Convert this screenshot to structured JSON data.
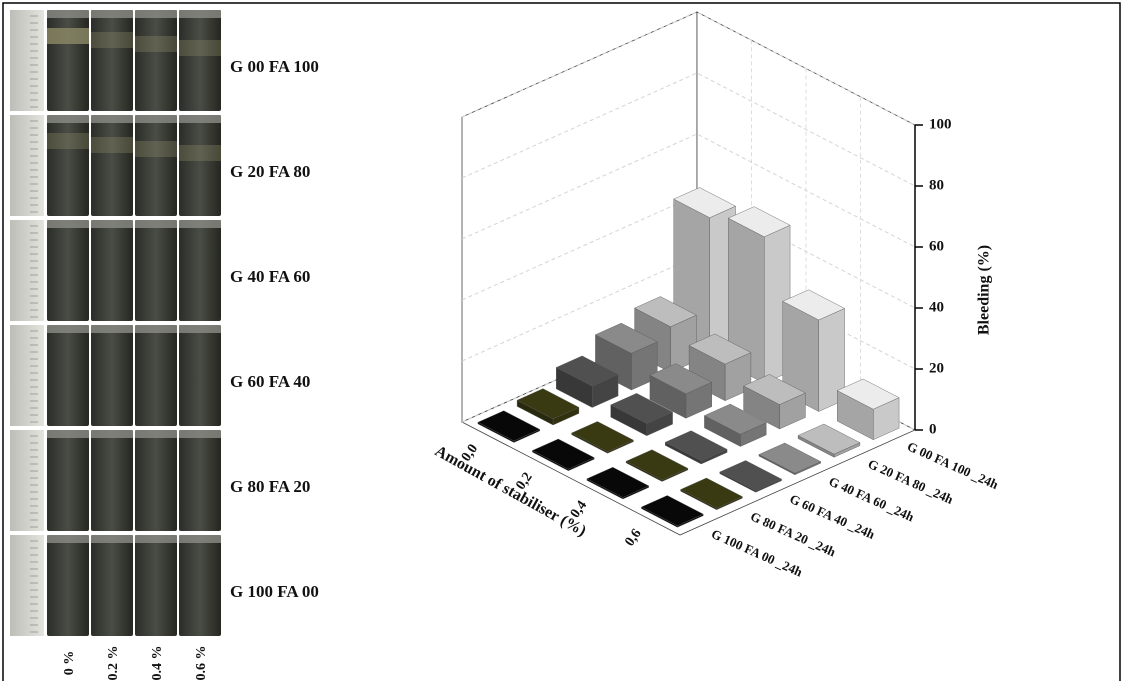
{
  "photo_panel": {
    "row_labels": [
      "G 00 FA 100",
      "G 20 FA 80",
      "G 40 FA 60",
      "G 60 FA 40",
      "G 80 FA 20",
      "G 100 FA 00"
    ],
    "column_labels": [
      "0 %",
      "0.2 %",
      "0.4 %",
      "0.6 %"
    ]
  },
  "chart_data": {
    "type": "bar3d",
    "categories": [
      "0,0",
      "0,2",
      "0,4",
      "0,6"
    ],
    "x_label": "Amount of stabiliser (%)",
    "z_label": "Bleeding (%)",
    "zlim": [
      0,
      100
    ],
    "zticks": [
      0,
      20,
      40,
      60,
      80,
      100
    ],
    "grid": true,
    "series": [
      {
        "name": "G 00 FA 100 _24h",
        "color": "#ececec",
        "values": [
          45,
          48,
          30,
          10
        ]
      },
      {
        "name": "G 20 FA 80 _24h",
        "color": "#bdbdbd",
        "values": [
          15,
          12,
          8,
          1
        ]
      },
      {
        "name": "G 40 FA 60 _24h",
        "color": "#8a8a8a",
        "values": [
          12,
          8,
          4,
          0.5
        ]
      },
      {
        "name": "G 60 FA 40 _24h",
        "color": "#505050",
        "values": [
          7,
          4,
          1,
          0.5
        ]
      },
      {
        "name": "G 80 FA 20 _24h",
        "color": "#3a3a12",
        "values": [
          2,
          0.5,
          0.5,
          0.5
        ]
      },
      {
        "name": "G 100 FA 00 _24h",
        "color": "#080808",
        "values": [
          0.5,
          0.5,
          0.5,
          0.5
        ]
      }
    ]
  }
}
